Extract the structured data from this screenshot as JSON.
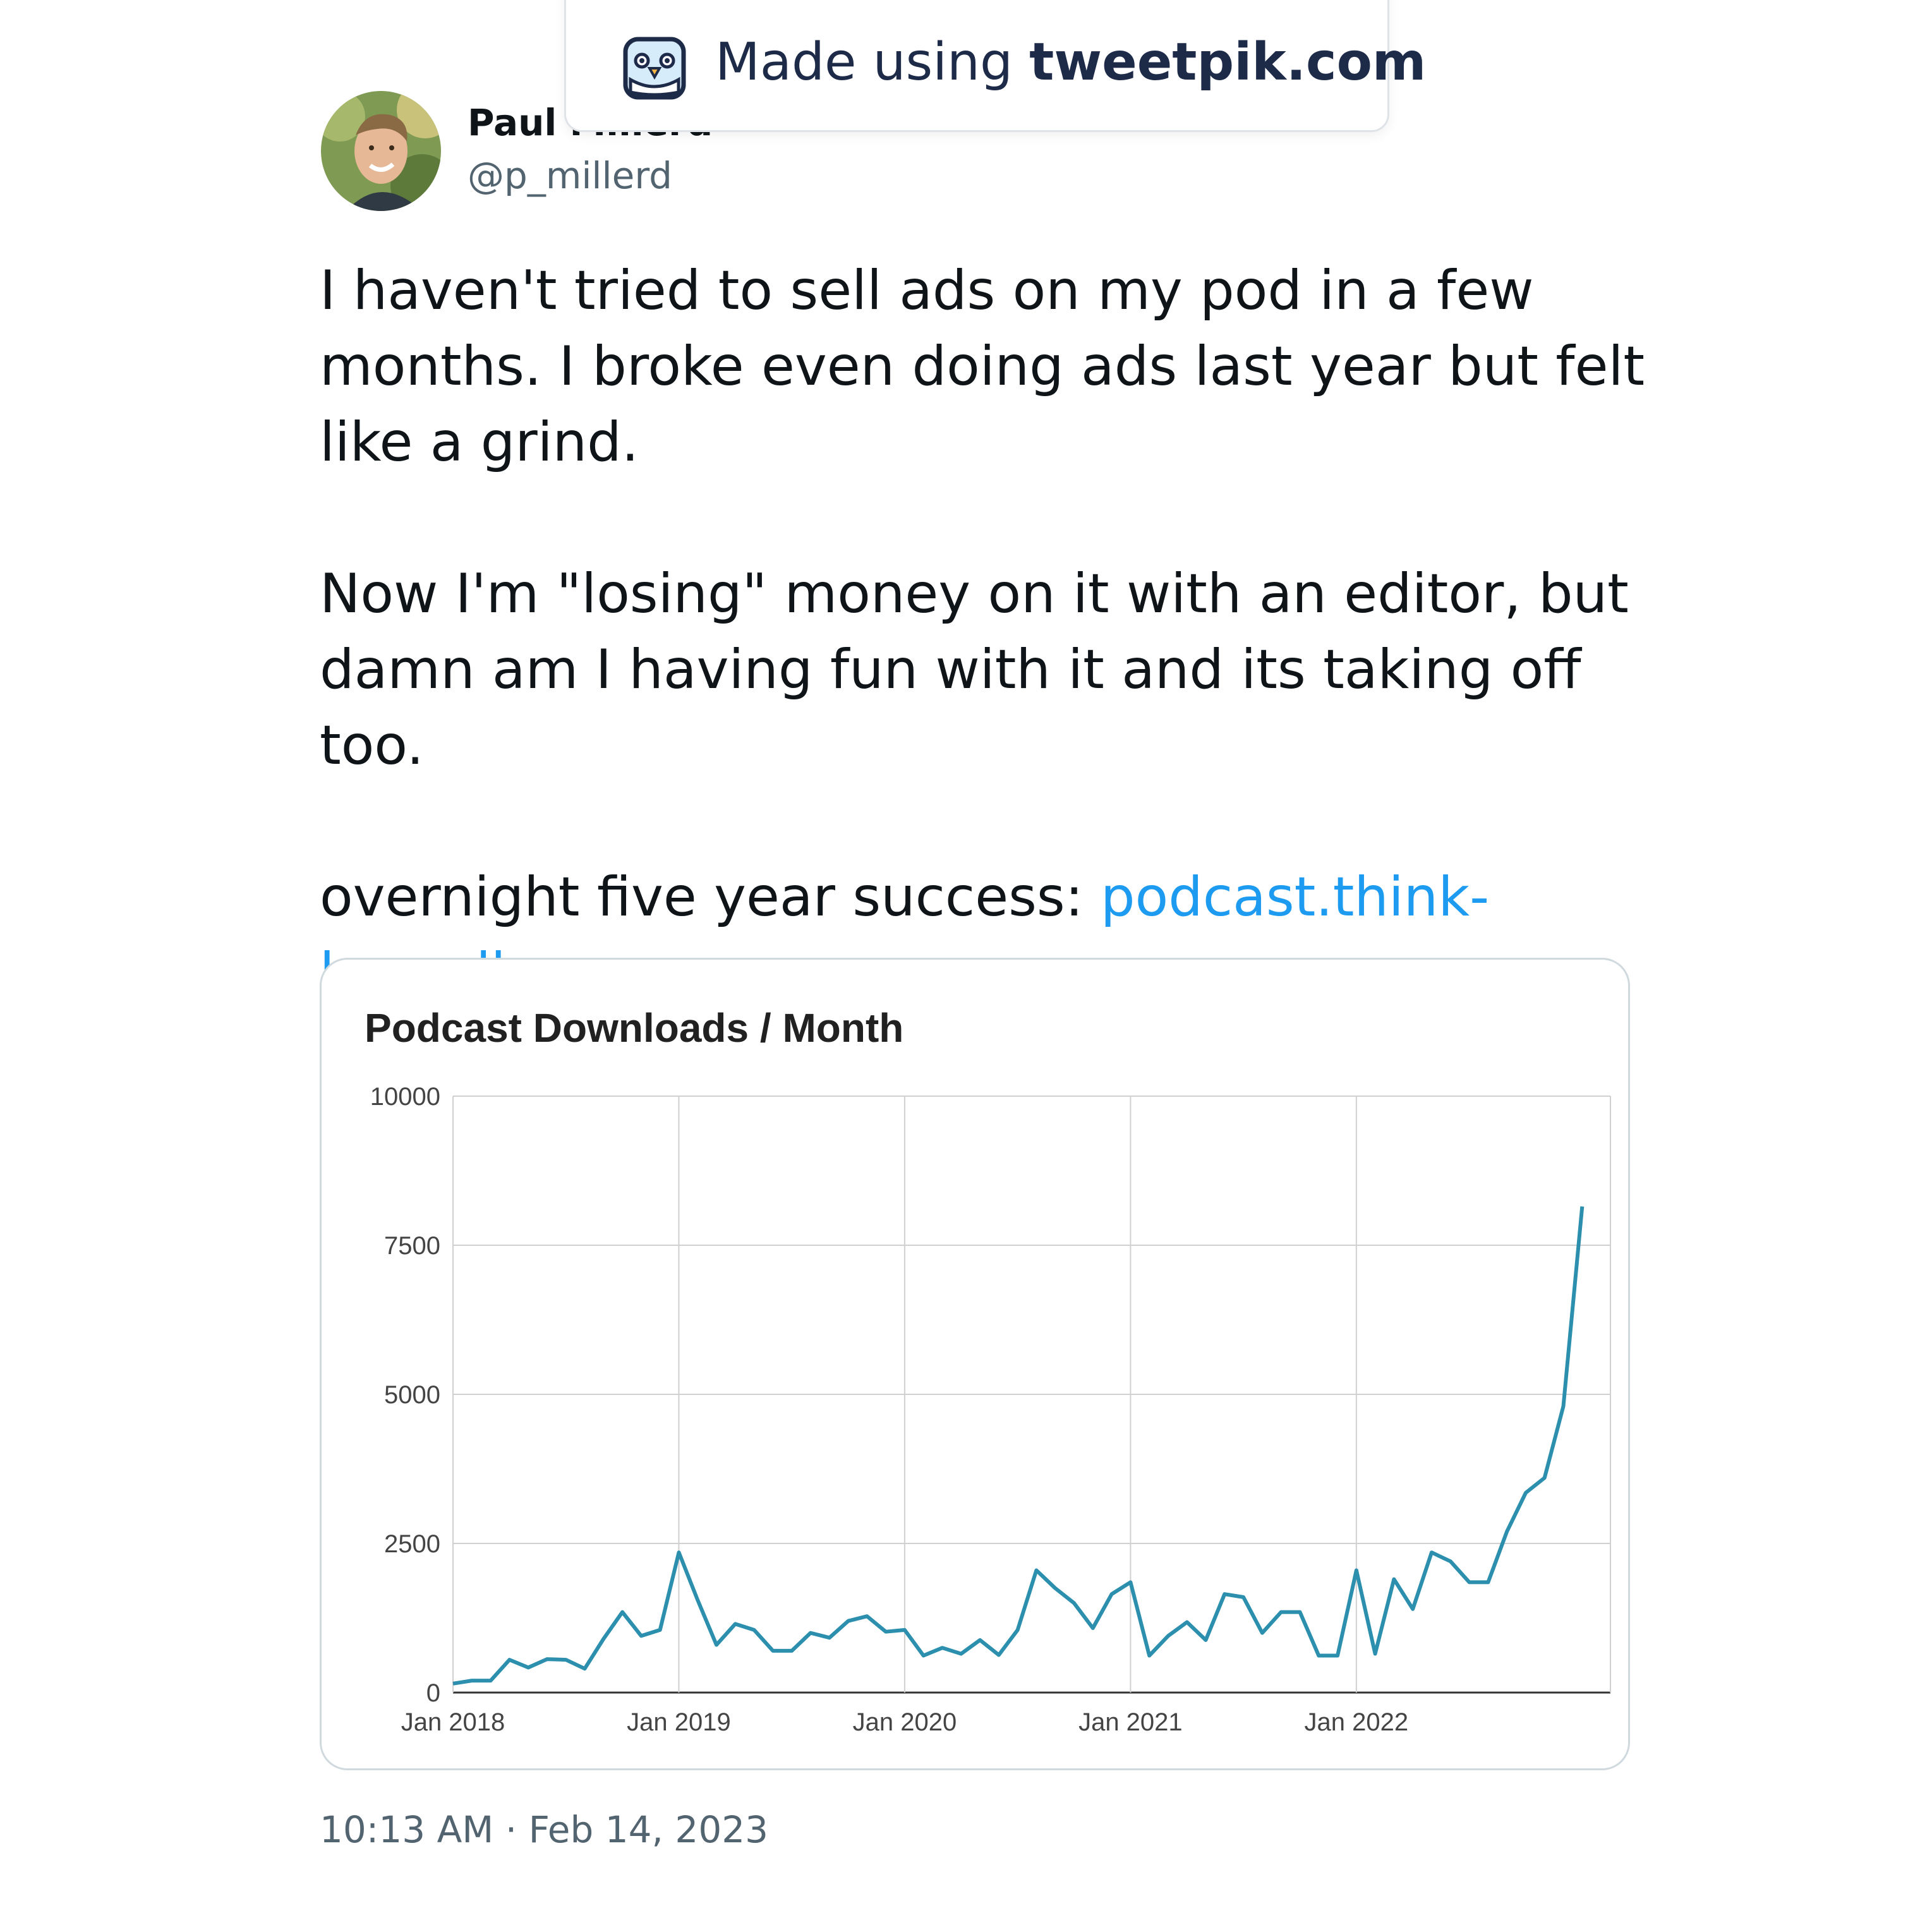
{
  "watermark": {
    "prefix": "Made using ",
    "brand": "tweetpik.com",
    "logo_icon": "parrot-logo-icon"
  },
  "author": {
    "name": "Paul Millerd",
    "handle": "@p_millerd",
    "avatar_icon": "profile-photo"
  },
  "tweet": {
    "paragraph1": "I haven't tried to sell ads on my pod in a few\nmonths.  I broke even doing ads last year but felt\nlike a grind.",
    "paragraph2": "Now I'm \"losing\" money on it with an editor, but\ndamn am I having fun with it and its taking off too.",
    "paragraph3_prefix": "overnight five year success: ",
    "link_text": "podcast.think-\nboundless.com",
    "timestamp": "10:13 AM · Feb 14, 2023"
  },
  "colors": {
    "link": "#1d9bf0",
    "line": "#2b8fad",
    "secondary_text": "#536471"
  },
  "chart_data": {
    "type": "line",
    "title": "Podcast Downloads / Month",
    "xlabel": "",
    "ylabel": "",
    "ylim": [
      0,
      10000
    ],
    "yticks": [
      "0",
      "2500",
      "5000",
      "7500",
      "10000"
    ],
    "xticks": [
      "Jan 2018",
      "Jan 2019",
      "Jan 2020",
      "Jan 2021",
      "Jan 2022"
    ],
    "grid": true,
    "legend": "none",
    "series": [
      {
        "x": [
          "2018-01",
          "2018-02",
          "2018-03",
          "2018-04",
          "2018-05",
          "2018-06",
          "2018-07",
          "2018-08",
          "2018-09",
          "2018-10",
          "2018-11",
          "2018-12",
          "2019-01",
          "2019-02",
          "2019-03",
          "2019-04",
          "2019-05",
          "2019-06",
          "2019-07",
          "2019-08",
          "2019-09",
          "2019-10",
          "2019-11",
          "2019-12",
          "2020-01",
          "2020-02",
          "2020-03",
          "2020-04",
          "2020-05",
          "2020-06",
          "2020-07",
          "2020-08",
          "2020-09",
          "2020-10",
          "2020-11",
          "2020-12",
          "2021-01",
          "2021-02",
          "2021-03",
          "2021-04",
          "2021-05",
          "2021-06",
          "2021-07",
          "2021-08",
          "2021-09",
          "2021-10",
          "2021-11",
          "2021-12",
          "2022-01",
          "2022-02",
          "2022-03",
          "2022-04",
          "2022-05",
          "2022-06",
          "2022-07",
          "2022-08",
          "2022-09",
          "2022-10",
          "2022-11",
          "2022-12",
          "2023-01"
        ],
        "values": [
          150,
          200,
          200,
          550,
          420,
          560,
          550,
          400,
          900,
          1350,
          950,
          1050,
          2350,
          1550,
          800,
          1150,
          1050,
          700,
          700,
          1000,
          920,
          1200,
          1280,
          1020,
          1050,
          620,
          750,
          650,
          880,
          630,
          1050,
          2050,
          1750,
          1500,
          1080,
          1650,
          1850,
          620,
          950,
          1180,
          880,
          1650,
          1600,
          1000,
          1350,
          1350,
          620,
          620,
          2050,
          650,
          1900,
          1400,
          2350,
          2200,
          1850,
          1850,
          2700,
          3350,
          3600,
          4800,
          8150
        ]
      }
    ]
  }
}
